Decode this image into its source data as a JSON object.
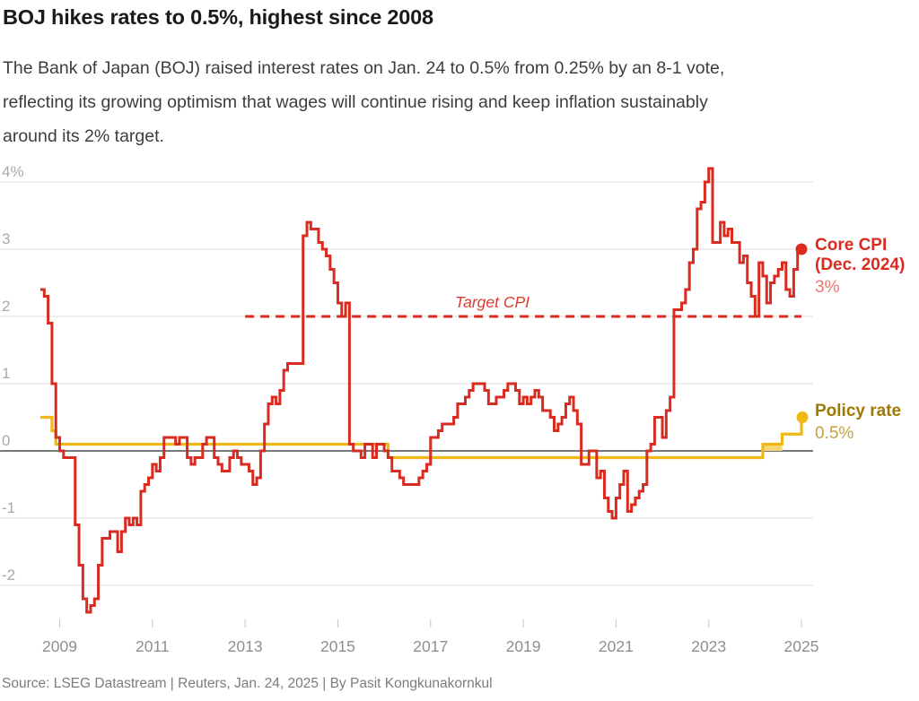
{
  "header": {
    "title": "BOJ hikes rates to 0.5%, highest since 2008",
    "subtitle_lines": [
      "The Bank of Japan (BOJ) raised interest rates on Jan. 24 to 0.5% from 0.25% by an 8-1 vote,",
      "reflecting its growing optimism that wages will continue rising and keep inflation sustainably",
      "around its 2% target."
    ]
  },
  "footer": {
    "source": "Source: LSEG Datastream | Reuters, Jan. 24, 2025 | By Pasit Kongkunakornkul"
  },
  "colors": {
    "cpi_red": "#d92b1f",
    "cpi_value_red": "#e8776f",
    "target_red": "#dc3a2e",
    "policy_yellow": "#f0b817",
    "policy_band": "#f7d676",
    "policy_label_gold": "#9f7a00",
    "policy_value_gold": "#c2a040",
    "grid": "#dcdcdc",
    "zero_line": "#4b4b4b",
    "tick_mark": "#c4c4c4",
    "y_text": "#a9a9a9",
    "x_text": "#8f8f8f"
  },
  "chart_data": {
    "type": "line",
    "title": "BOJ hikes rates to 0.5%, highest since 2008",
    "grid": "horizontal",
    "ylim": [
      -2.6,
      4.3
    ],
    "x_range": [
      "2008-08",
      "2025-01"
    ],
    "y_ticks": [
      {
        "label": "4%",
        "value": 4
      },
      {
        "label": "3",
        "value": 3
      },
      {
        "label": "2",
        "value": 2
      },
      {
        "label": "1",
        "value": 1
      },
      {
        "label": "0",
        "value": 0
      },
      {
        "label": "-1",
        "value": -1
      },
      {
        "label": "-2",
        "value": -2
      }
    ],
    "x_ticks": [
      {
        "label": "2009",
        "month": "2009-01"
      },
      {
        "label": "2011",
        "month": "2011-01"
      },
      {
        "label": "2013",
        "month": "2013-01"
      },
      {
        "label": "2015",
        "month": "2015-01"
      },
      {
        "label": "2017",
        "month": "2017-01"
      },
      {
        "label": "2019",
        "month": "2019-01"
      },
      {
        "label": "2021",
        "month": "2021-01"
      },
      {
        "label": "2023",
        "month": "2023-01"
      },
      {
        "label": "2025",
        "month": "2025-01"
      }
    ],
    "series": [
      {
        "name": "Core CPI",
        "unit": "% year-on-year",
        "color_key": "cpi_red",
        "start": "2008-08",
        "interval": "monthly",
        "end_dot": true,
        "values": [
          2.4,
          2.3,
          1.9,
          1.0,
          0.2,
          0.0,
          -0.1,
          -0.1,
          -0.1,
          -1.1,
          -1.7,
          -2.2,
          -2.4,
          -2.3,
          -2.2,
          -1.7,
          -1.3,
          -1.3,
          -1.2,
          -1.2,
          -1.5,
          -1.2,
          -1.0,
          -1.1,
          -1.0,
          -1.1,
          -0.6,
          -0.5,
          -0.4,
          -0.2,
          -0.3,
          -0.1,
          0.2,
          0.2,
          0.2,
          0.1,
          0.2,
          0.2,
          -0.1,
          -0.2,
          -0.1,
          -0.1,
          0.1,
          0.2,
          0.2,
          -0.1,
          -0.2,
          -0.3,
          -0.3,
          -0.1,
          0.0,
          -0.1,
          -0.2,
          -0.2,
          -0.3,
          -0.5,
          -0.4,
          0.0,
          0.4,
          0.7,
          0.8,
          0.7,
          0.9,
          1.2,
          1.3,
          1.3,
          1.3,
          1.3,
          3.2,
          3.4,
          3.3,
          3.3,
          3.1,
          3.0,
          2.9,
          2.7,
          2.5,
          2.2,
          2.0,
          2.2,
          0.1,
          0.0,
          0.0,
          -0.1,
          0.1,
          0.1,
          -0.1,
          0.1,
          0.1,
          0.0,
          -0.1,
          -0.3,
          -0.3,
          -0.4,
          -0.5,
          -0.5,
          -0.5,
          -0.5,
          -0.4,
          -0.3,
          -0.2,
          0.2,
          0.2,
          0.3,
          0.4,
          0.4,
          0.4,
          0.5,
          0.7,
          0.7,
          0.8,
          0.9,
          1.0,
          1.0,
          1.0,
          0.9,
          0.7,
          0.7,
          0.8,
          0.8,
          0.9,
          1.0,
          1.0,
          0.9,
          0.7,
          0.8,
          0.7,
          0.8,
          0.9,
          0.8,
          0.6,
          0.6,
          0.5,
          0.3,
          0.4,
          0.5,
          0.7,
          0.8,
          0.6,
          0.4,
          -0.2,
          -0.2,
          0.0,
          0.0,
          -0.4,
          -0.3,
          -0.7,
          -0.9,
          -1.0,
          -0.7,
          -0.5,
          -0.3,
          -0.9,
          -0.8,
          -0.7,
          -0.6,
          -0.5,
          0.0,
          0.1,
          0.5,
          0.5,
          0.2,
          0.6,
          0.8,
          2.1,
          2.1,
          2.2,
          2.4,
          2.8,
          3.0,
          3.6,
          3.7,
          4.0,
          4.2,
          3.1,
          3.1,
          3.4,
          3.2,
          3.3,
          3.1,
          3.1,
          2.8,
          2.9,
          2.5,
          2.3,
          2.0,
          2.8,
          2.6,
          2.2,
          2.5,
          2.6,
          2.7,
          2.8,
          2.4,
          2.3,
          2.7,
          3.0
        ]
      },
      {
        "name": "Policy rate",
        "unit": "%",
        "color_key": "policy_yellow",
        "end_dot": true,
        "segments": [
          {
            "from": "2008-08",
            "to": "2008-10",
            "value": 0.5
          },
          {
            "from": "2008-11",
            "to": "2008-11",
            "value": 0.3
          },
          {
            "from": "2008-12",
            "to": "2016-01",
            "value": 0.1
          },
          {
            "from": "2016-02",
            "to": "2024-02",
            "value": -0.1
          },
          {
            "from": "2024-03",
            "to": "2024-07",
            "value": 0.1,
            "band": [
              0,
              0.1
            ]
          },
          {
            "from": "2024-08",
            "to": "2024-12",
            "value": 0.25
          },
          {
            "from": "2025-01",
            "to": "2025-01",
            "value": 0.5
          }
        ]
      }
    ],
    "annotations": {
      "target_line": {
        "label": "Target CPI",
        "value": 2,
        "from": "2013-01",
        "to": "2025-01"
      },
      "core_end_label": {
        "name": "Core CPI",
        "date": "(Dec. 2024)",
        "value": "3%"
      },
      "policy_end_label": {
        "name": "Policy rate",
        "value": "0.5%"
      }
    },
    "legend_position": "right"
  }
}
